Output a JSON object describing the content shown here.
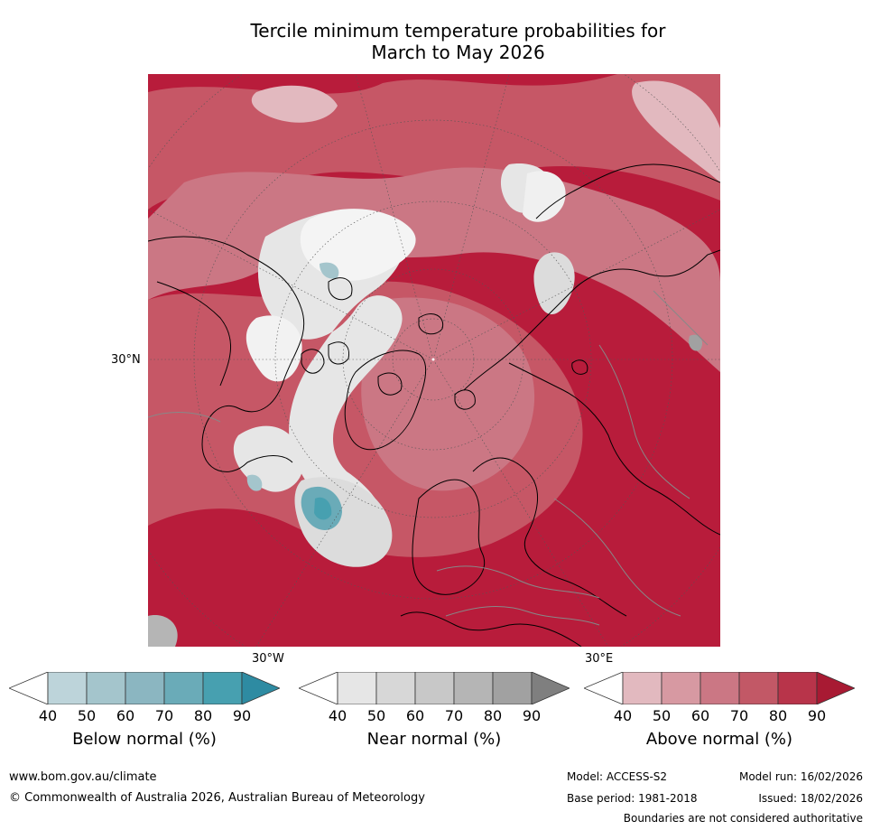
{
  "title": {
    "line1": "Tercile minimum temperature probabilities for",
    "line2": "March to May 2026"
  },
  "map": {
    "projection": "north polar stereographic",
    "lat_label": "30°N",
    "lon_label_west": "30°W",
    "lon_label_east": "30°E"
  },
  "colorbars": [
    {
      "label": "Below normal (%)",
      "ticks": [
        "40",
        "50",
        "60",
        "70",
        "80",
        "90"
      ],
      "colors": [
        "#ffffff",
        "#bdd4da",
        "#a4c5cc",
        "#8bb6c1",
        "#6aabb8",
        "#47a0b0",
        "#2e8ba2"
      ]
    },
    {
      "label": "Near normal (%)",
      "ticks": [
        "40",
        "50",
        "60",
        "70",
        "80",
        "90"
      ],
      "colors": [
        "#ffffff",
        "#e6e6e6",
        "#d7d7d7",
        "#c8c8c8",
        "#b5b5b5",
        "#a1a1a1",
        "#7f7f7f"
      ]
    },
    {
      "label": "Above normal (%)",
      "ticks": [
        "40",
        "50",
        "60",
        "70",
        "80",
        "90"
      ],
      "colors": [
        "#ffffff",
        "#e2b9bf",
        "#d799a2",
        "#cb7784",
        "#c25866",
        "#b8344a",
        "#a81a33"
      ]
    }
  ],
  "footer": {
    "website": "www.bom.gov.au/climate",
    "copyright": "© Commonwealth of Australia 2026, Australian Bureau of Meteorology",
    "model": "Model: ACCESS-S2",
    "model_run": "Model run: 16/02/2026",
    "base_period": "Base period: 1981-2018",
    "issued": "Issued: 18/02/2026",
    "boundaries": "Boundaries are not considered authoritative"
  }
}
